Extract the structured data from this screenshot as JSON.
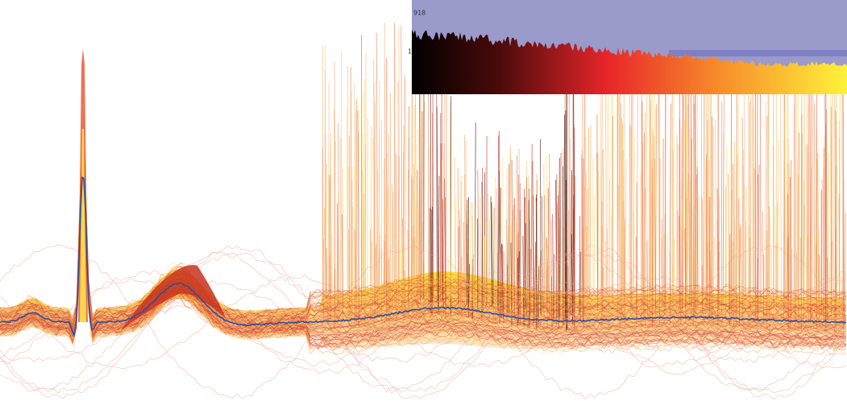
{
  "inset": {
    "max_label": "918",
    "min_label": "1"
  }
}
